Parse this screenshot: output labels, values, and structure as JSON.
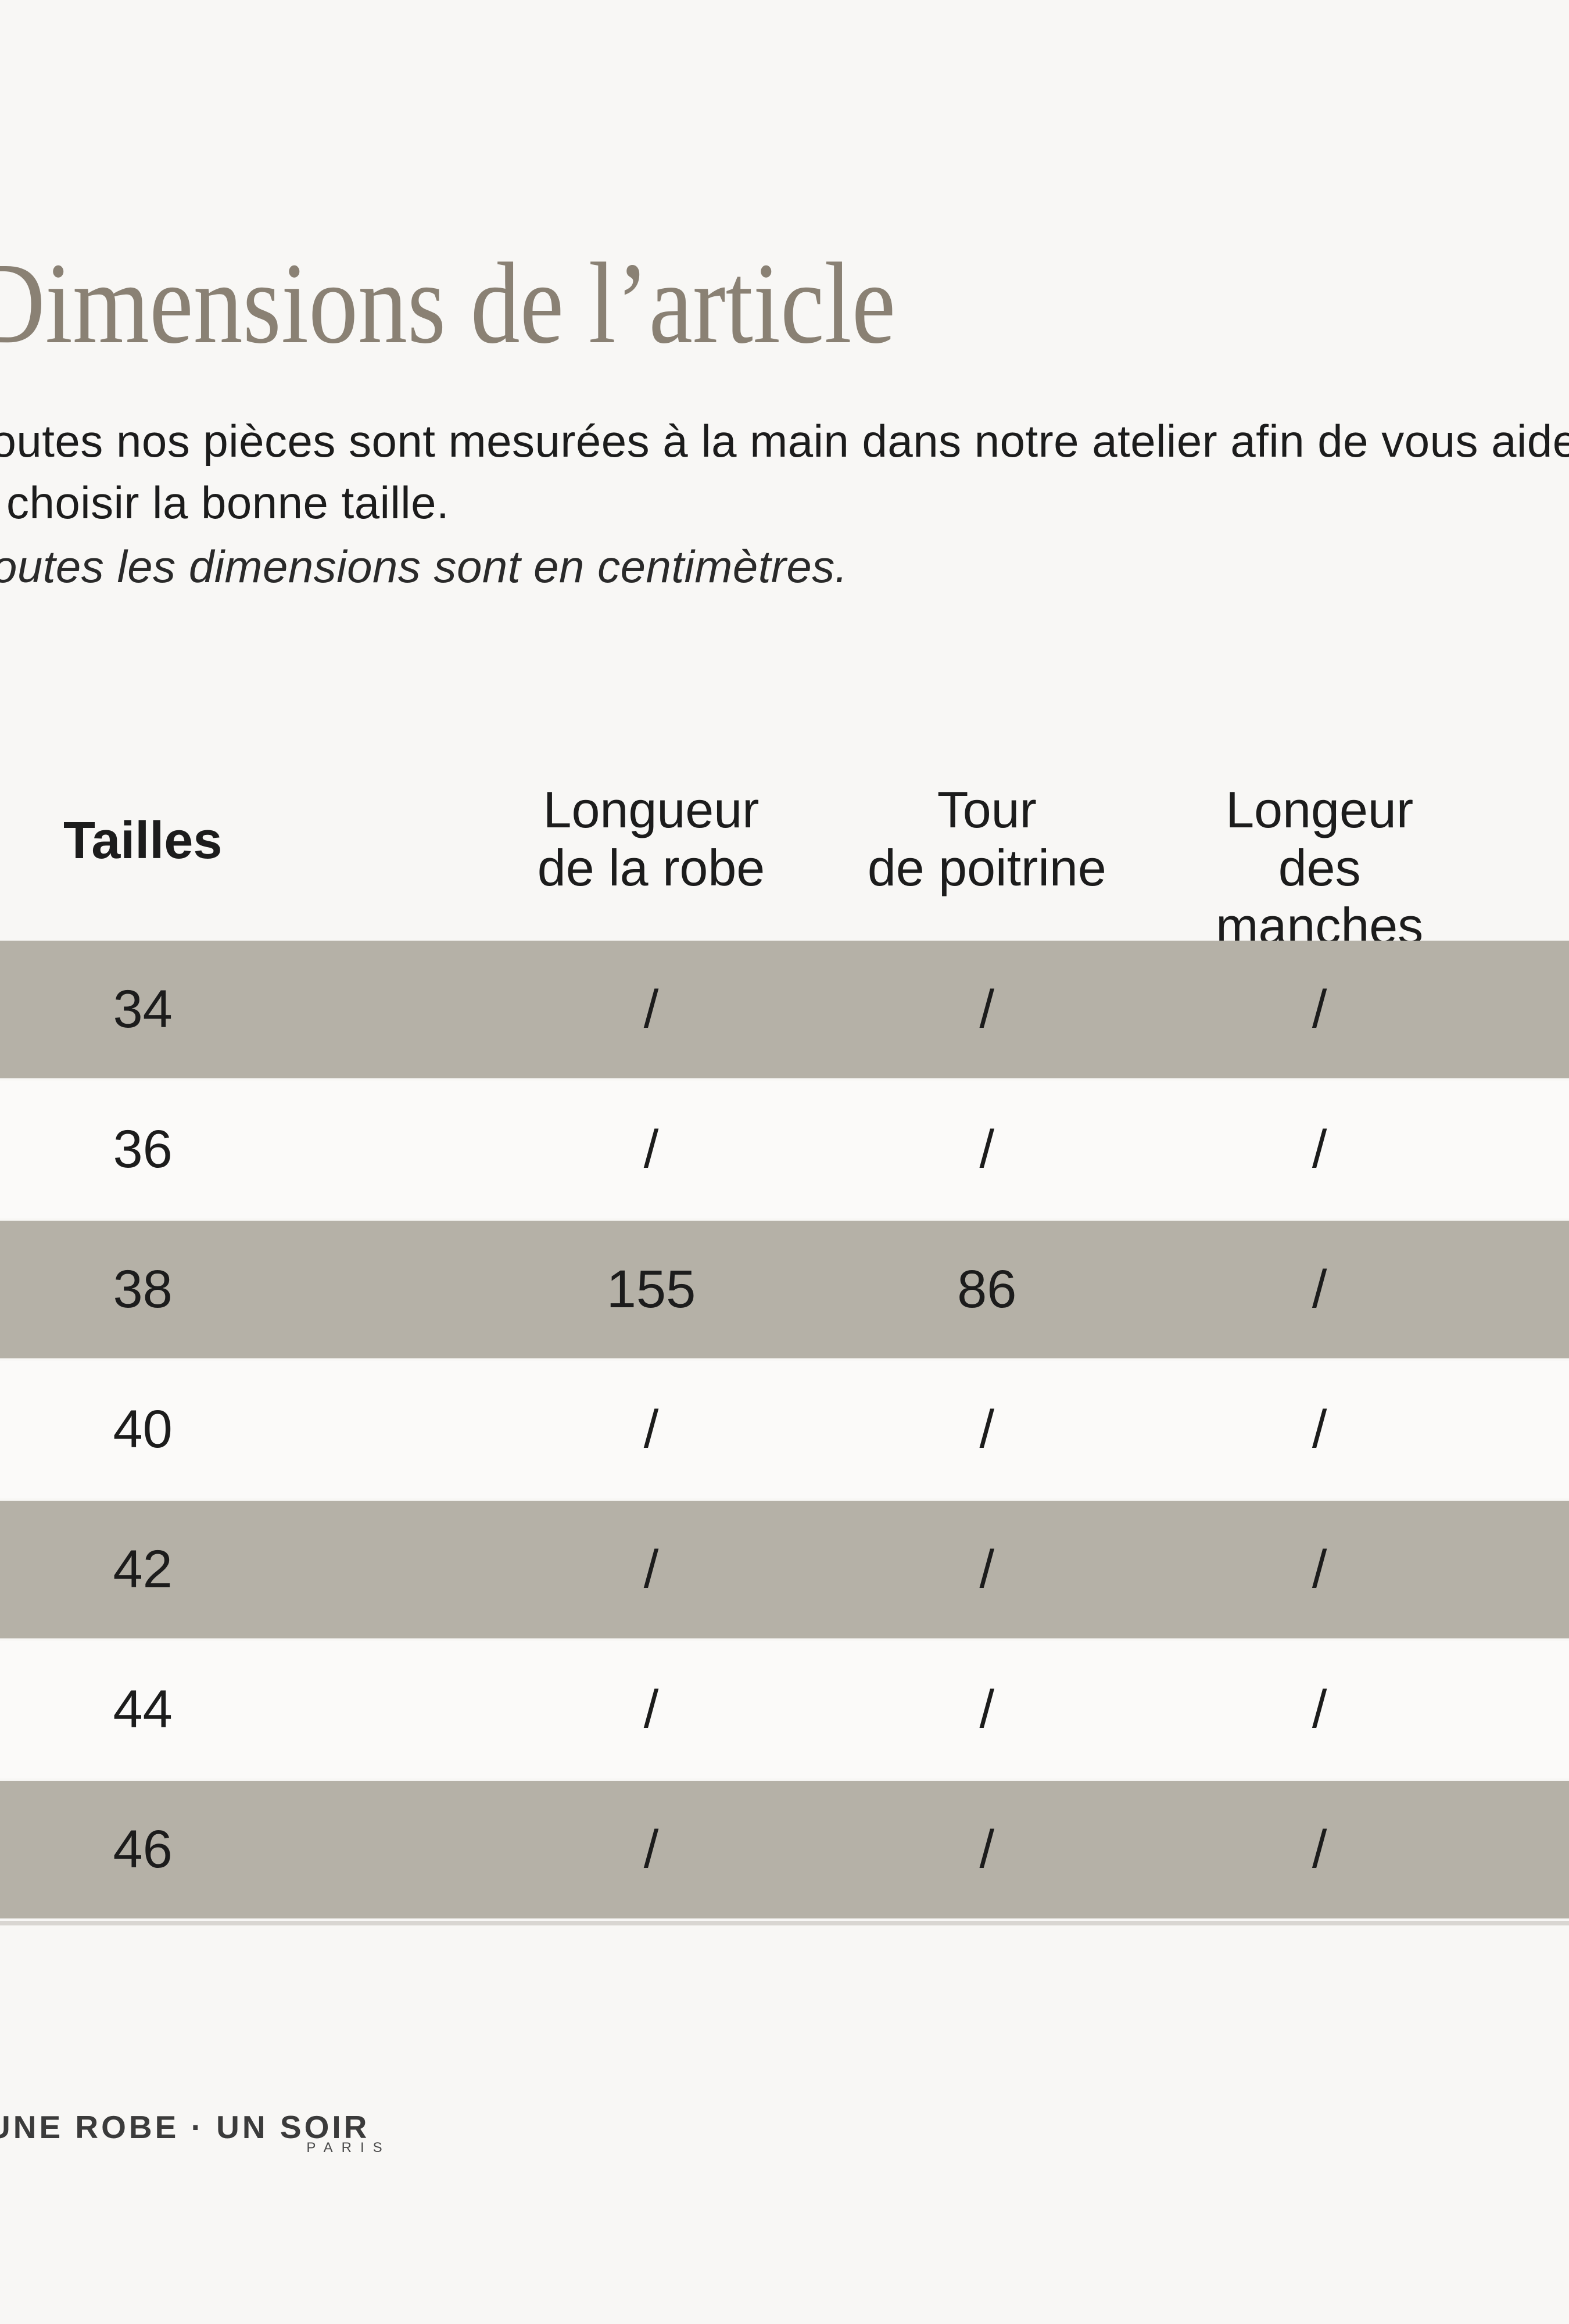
{
  "page": {
    "title": "Dimensions de l’article",
    "intro_line1": "Toutes nos pièces sont mesurées à la main dans notre atelier afin de vous aider",
    "intro_line2": "à choisir la bonne taille.",
    "unit_note": "Toutes les dimensions sont en centimètres."
  },
  "table": {
    "header": {
      "col1": "Tailles",
      "col2_line1": "Longueur",
      "col2_line2": "de la robe",
      "col3_line1": "Tour",
      "col3_line2": "de poitrine",
      "col4_line1": "Longeur",
      "col4_line2": "des manches"
    },
    "rows": [
      {
        "size": "34",
        "robe": "/",
        "poitrine": "/",
        "manches": "/"
      },
      {
        "size": "36",
        "robe": "/",
        "poitrine": "/",
        "manches": "/"
      },
      {
        "size": "38",
        "robe": "155",
        "poitrine": "86",
        "manches": "/"
      },
      {
        "size": "40",
        "robe": "/",
        "poitrine": "/",
        "manches": "/"
      },
      {
        "size": "42",
        "robe": "/",
        "poitrine": "/",
        "manches": "/"
      },
      {
        "size": "44",
        "robe": "/",
        "poitrine": "/",
        "manches": "/"
      },
      {
        "size": "46",
        "robe": "/",
        "poitrine": "/",
        "manches": "/"
      }
    ]
  },
  "footer": {
    "brand": "UNE ROBE · UN SOIR",
    "brand_sub": "PARIS"
  },
  "colors": {
    "page_bg": "#f8f7f5",
    "row_grey": "#b5b1a7",
    "row_light": "#fbfaf9",
    "table_edge": "#d9d6d2",
    "title": "#8a8174",
    "text": "#1c1c1c",
    "brand": "#3b3b3b"
  }
}
